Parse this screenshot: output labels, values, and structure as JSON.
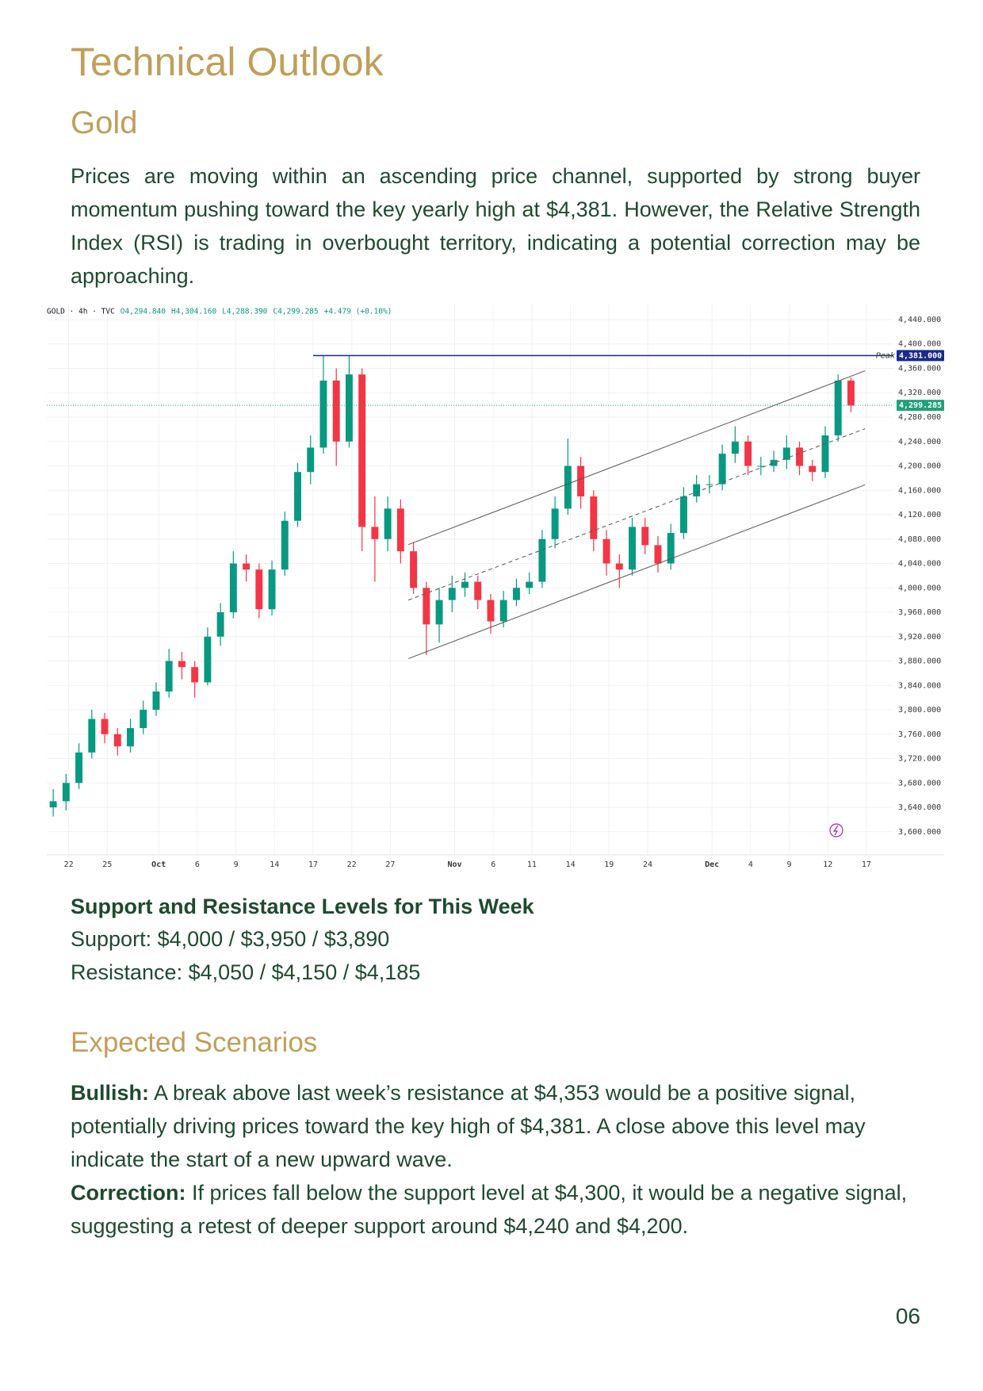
{
  "header": {
    "title": "Technical Outlook",
    "subtitle": "Gold"
  },
  "intro": "Prices are moving within an ascending price channel, supported by strong buyer momentum pushing toward the key yearly high at $4,381. However, the Relative Strength Index (RSI) is trading in overbought territory, indicating a potential correction may be approaching.",
  "chart_data": {
    "type": "candlestick",
    "header": [
      "GOLD · 4h · TVC",
      "O4,294.840",
      "H4,304.160",
      "L4,288.390",
      "C4,299.285",
      "+4.479 (+0.10%)"
    ],
    "open": [
      3640,
      3650,
      3680,
      3730,
      3785,
      3760,
      3740,
      3770,
      3800,
      3830,
      3880,
      3870,
      3845,
      3920,
      3960,
      4040,
      4030,
      3965,
      4030,
      4110,
      4190,
      4230,
      4340,
      4240,
      4350,
      4100,
      4080,
      4130,
      4060,
      4000,
      3940,
      3980,
      4000,
      4010,
      3980,
      3945,
      3980,
      4000,
      4010,
      4080,
      4130,
      4200,
      4150,
      4080,
      4040,
      4030,
      4100,
      4070,
      4040,
      4090,
      4150,
      4170,
      4170,
      4220,
      4240,
      4200,
      4200,
      4210,
      4230,
      4200,
      4190,
      4250,
      4340
    ],
    "high": [
      3670,
      3695,
      3745,
      3800,
      3795,
      3770,
      3785,
      3815,
      3845,
      3900,
      3895,
      3880,
      3935,
      3975,
      4060,
      4055,
      4040,
      4045,
      4125,
      4205,
      4250,
      4381,
      4360,
      4381,
      4360,
      4150,
      4150,
      4145,
      4075,
      4010,
      4000,
      4020,
      4025,
      4020,
      3990,
      3995,
      4015,
      4025,
      4095,
      4150,
      4245,
      4215,
      4160,
      4095,
      4055,
      4115,
      4115,
      4085,
      4105,
      4165,
      4185,
      4185,
      4235,
      4265,
      4250,
      4215,
      4225,
      4250,
      4240,
      4210,
      4265,
      4350,
      4345
    ],
    "low": [
      3625,
      3635,
      3670,
      3720,
      3745,
      3725,
      3730,
      3760,
      3790,
      3820,
      3850,
      3820,
      3840,
      3905,
      3950,
      4010,
      3950,
      3955,
      4020,
      4100,
      4170,
      4220,
      4200,
      4230,
      4060,
      4010,
      4060,
      4040,
      3990,
      3890,
      3910,
      3960,
      3985,
      3965,
      3925,
      3935,
      3970,
      3990,
      4000,
      4065,
      4120,
      4130,
      4060,
      4020,
      4000,
      4020,
      4055,
      4025,
      4030,
      4080,
      4140,
      4155,
      4160,
      4205,
      4185,
      4185,
      4190,
      4195,
      4185,
      4175,
      4180,
      4240,
      4288
    ],
    "close": [
      3650,
      3680,
      3730,
      3785,
      3760,
      3740,
      3770,
      3800,
      3830,
      3880,
      3870,
      3845,
      3920,
      3960,
      4040,
      4030,
      3965,
      4030,
      4110,
      4190,
      4230,
      4340,
      4240,
      4350,
      4100,
      4080,
      4130,
      4060,
      4000,
      3940,
      3980,
      4000,
      4010,
      3980,
      3945,
      3980,
      4000,
      4010,
      4080,
      4130,
      4200,
      4150,
      4080,
      4040,
      4030,
      4100,
      4070,
      4040,
      4090,
      4150,
      4170,
      4170,
      4220,
      4240,
      4200,
      4200,
      4210,
      4230,
      4200,
      4190,
      4250,
      4340,
      4299
    ],
    "up_color": "#089981",
    "down_color": "#f23645",
    "xlim": [
      0,
      65.8
    ],
    "xticks": [
      {
        "value": 1.7,
        "label": "22"
      },
      {
        "value": 4.7,
        "label": "25"
      },
      {
        "value": 8.7,
        "label": "Oct"
      },
      {
        "value": 11.7,
        "label": "6"
      },
      {
        "value": 14.7,
        "label": "9"
      },
      {
        "value": 17.7,
        "label": "14"
      },
      {
        "value": 20.7,
        "label": "17"
      },
      {
        "value": 23.7,
        "label": "22"
      },
      {
        "value": 26.7,
        "label": "27"
      },
      {
        "value": 31.7,
        "label": "Nov"
      },
      {
        "value": 34.7,
        "label": "6"
      },
      {
        "value": 37.7,
        "label": "11"
      },
      {
        "value": 40.7,
        "label": "14"
      },
      {
        "value": 43.7,
        "label": "19"
      },
      {
        "value": 46.7,
        "label": "24"
      },
      {
        "value": 51.7,
        "label": "Dec"
      },
      {
        "value": 54.7,
        "label": "4"
      },
      {
        "value": 57.7,
        "label": "9"
      },
      {
        "value": 60.7,
        "label": "12"
      },
      {
        "value": 63.7,
        "label": "17"
      }
    ],
    "ylim": [
      3562,
      4466
    ],
    "yticks": [
      {
        "value": 3600,
        "label": "3,600.000"
      },
      {
        "value": 3640,
        "label": "3,640.000"
      },
      {
        "value": 3680,
        "label": "3,680.000"
      },
      {
        "value": 3720,
        "label": "3,720.000"
      },
      {
        "value": 3760,
        "label": "3,760.000"
      },
      {
        "value": 3800,
        "label": "3,800.000"
      },
      {
        "value": 3840,
        "label": "3,840.000"
      },
      {
        "value": 3880,
        "label": "3,880.000"
      },
      {
        "value": 3920,
        "label": "3,920.000"
      },
      {
        "value": 3960,
        "label": "3,960.000"
      },
      {
        "value": 4000,
        "label": "4,000.000"
      },
      {
        "value": 4040,
        "label": "4,040.000"
      },
      {
        "value": 4080,
        "label": "4,080.000"
      },
      {
        "value": 4120,
        "label": "4,120.000"
      },
      {
        "value": 4160,
        "label": "4,160.000"
      },
      {
        "value": 4200,
        "label": "4,200.000"
      },
      {
        "value": 4240,
        "label": "4,240.000"
      },
      {
        "value": 4280,
        "label": "4,280.000"
      },
      {
        "value": 4320,
        "label": "4,320.000"
      },
      {
        "value": 4360,
        "label": "4,360.000"
      },
      {
        "value": 4400,
        "label": "4,400.000"
      },
      {
        "value": 4440,
        "label": "4,440.000"
      }
    ],
    "grid": true,
    "channel": [
      {
        "x": [
          28.1,
          63.6
        ],
        "y": [
          4071,
          4356
        ],
        "dashed": false
      },
      {
        "x": [
          28.1,
          63.6
        ],
        "y": [
          3980,
          4261
        ],
        "dashed": true
      },
      {
        "x": [
          28.1,
          63.6
        ],
        "y": [
          3884,
          4169
        ],
        "dashed": false
      }
    ],
    "peak": {
      "label": "Peak",
      "value": 4381,
      "value_label": "4,381.000",
      "x": 20.7,
      "color": "#1a2a8a"
    },
    "last": {
      "value": 4299.285,
      "value_label": "4,299.285",
      "color": "#22a07a"
    }
  },
  "levels": {
    "heading": "Support and Resistance Levels for This Week",
    "support": "Support: $4,000 / $3,950 / $3,890",
    "resistance": "Resistance: $4,050 / $4,150 / $4,185"
  },
  "scenarios": {
    "heading": "Expected Scenarios",
    "items": [
      {
        "label": "Bullish:",
        "text": "A break above last week’s resistance at $4,353 would be a positive signal, potentially driving prices toward the key high of $4,381. A close above this level may indicate the start of a new upward wave."
      },
      {
        "label": "Correction:",
        "text": "If prices fall below the support level at $4,300, it would be a negative signal, suggesting a retest of deeper support around $4,240 and $4,200."
      }
    ]
  },
  "page_number": "06"
}
